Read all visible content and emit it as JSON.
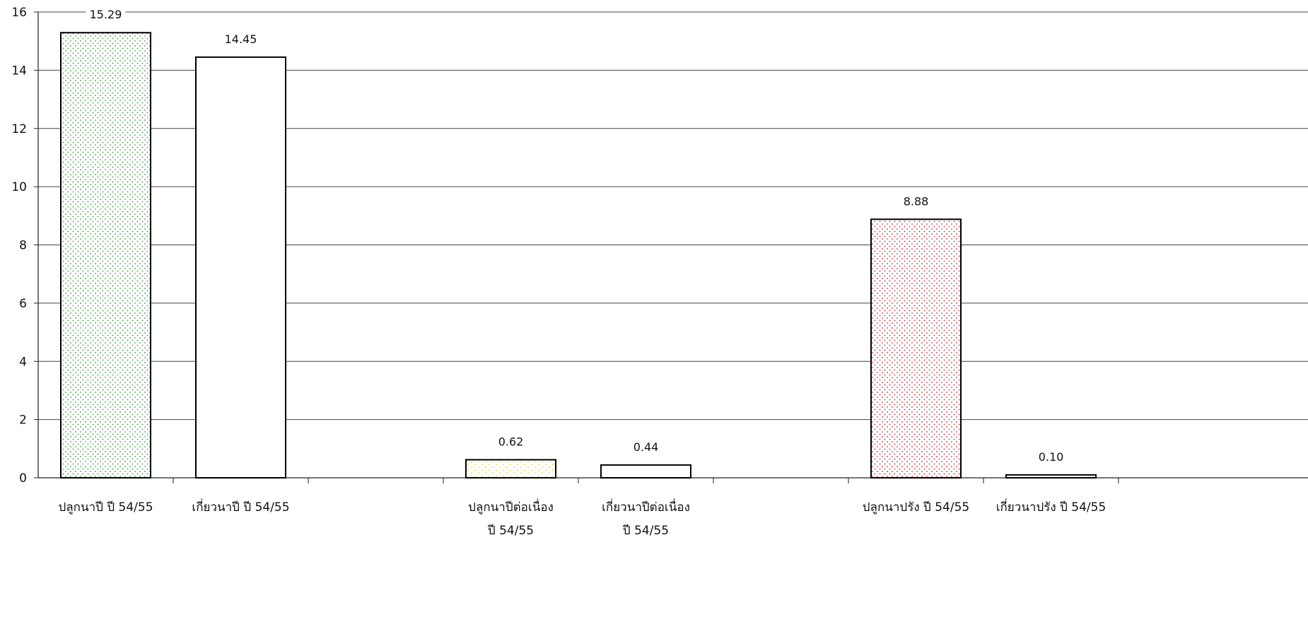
{
  "chart_data": {
    "type": "bar",
    "categories": [
      "ปลูกนาปี  ปี 54/55",
      "เกี่ยวนาปี  ปี 54/55",
      "",
      "ปลูกนาปีต่อเนื่อง ปี 54/55",
      "เกี่ยวนาปีต่อเนื่อง ปี 54/55",
      "",
      "ปลูกนาปรัง ปี 54/55",
      "เกี่ยวนาปรัง ปี 54/55"
    ],
    "category_lines": [
      [
        "ปลูกนาปี    ปี 54/55"
      ],
      [
        "เกี่ยวนาปี    ปี 54/55"
      ],
      [],
      [
        "ปลูกนาปีต่อเนื่อง",
        "ปี 54/55"
      ],
      [
        "เกี่ยวนาปีต่อเนื่อง",
        "ปี 54/55"
      ],
      [],
      [
        "ปลูกนาปรัง ปี 54/55"
      ],
      [
        "เกี่ยวนาปรัง ปี 54/55"
      ]
    ],
    "values": [
      15.29,
      14.45,
      null,
      0.62,
      0.44,
      null,
      8.88,
      0.1
    ],
    "data_labels": [
      "15.29",
      "14.45",
      "",
      "0.62",
      "0.44",
      "",
      "8.88",
      "0.10"
    ],
    "ylim": [
      0,
      16
    ],
    "yticks": [
      0,
      2,
      4,
      6,
      8,
      10,
      12,
      14,
      16
    ],
    "grid": true,
    "legend": "none",
    "title": "",
    "xlabel": "",
    "ylabel": "",
    "bar_styles": [
      {
        "fill": "#ffffff",
        "dots": "#3a9a3a",
        "pattern": "dots"
      },
      {
        "fill": "#ffffff",
        "pattern": "none"
      },
      null,
      {
        "fill": "#ffffff",
        "dots": "#e8e03a",
        "pattern": "dashes"
      },
      {
        "fill": "#ffffff",
        "pattern": "none"
      },
      null,
      {
        "fill": "#ffffff",
        "dots": "#c0303a",
        "pattern": "dots"
      },
      {
        "fill": "#ffffff",
        "pattern": "none"
      }
    ],
    "colors": {
      "grid": "#444444",
      "axis": "#222222",
      "bar_border": "#000000"
    }
  }
}
